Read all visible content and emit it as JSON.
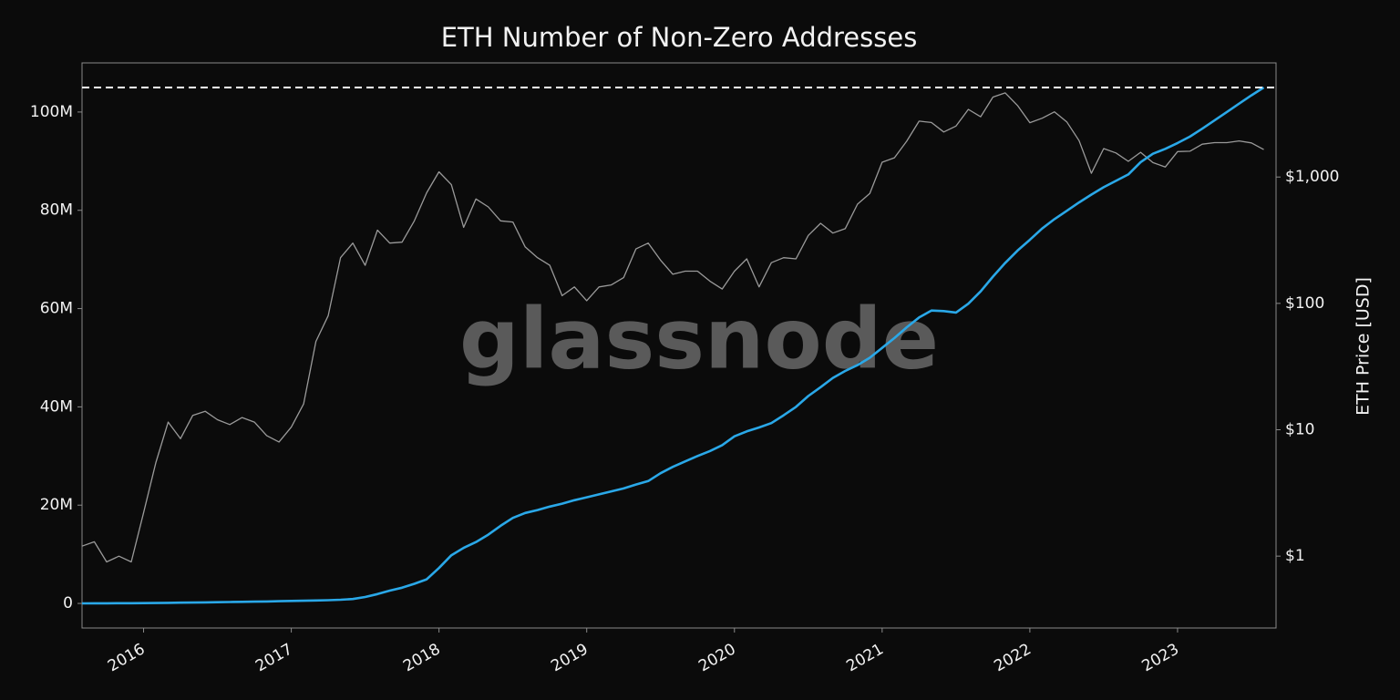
{
  "chart_data": {
    "type": "line",
    "title": "ETH Number of Non-Zero Addresses",
    "watermark": "glassnode",
    "y2label": "ETH Price [USD]",
    "x": [
      "2015-08",
      "2015-09",
      "2015-10",
      "2015-11",
      "2015-12",
      "2016-01",
      "2016-02",
      "2016-03",
      "2016-04",
      "2016-05",
      "2016-06",
      "2016-07",
      "2016-08",
      "2016-09",
      "2016-10",
      "2016-11",
      "2016-12",
      "2017-01",
      "2017-02",
      "2017-03",
      "2017-04",
      "2017-05",
      "2017-06",
      "2017-07",
      "2017-08",
      "2017-09",
      "2017-10",
      "2017-11",
      "2017-12",
      "2018-01",
      "2018-02",
      "2018-03",
      "2018-04",
      "2018-05",
      "2018-06",
      "2018-07",
      "2018-08",
      "2018-09",
      "2018-10",
      "2018-11",
      "2018-12",
      "2019-01",
      "2019-02",
      "2019-03",
      "2019-04",
      "2019-05",
      "2019-06",
      "2019-07",
      "2019-08",
      "2019-09",
      "2019-10",
      "2019-11",
      "2019-12",
      "2020-01",
      "2020-02",
      "2020-03",
      "2020-04",
      "2020-05",
      "2020-06",
      "2020-07",
      "2020-08",
      "2020-09",
      "2020-10",
      "2020-11",
      "2020-12",
      "2021-01",
      "2021-02",
      "2021-03",
      "2021-04",
      "2021-05",
      "2021-06",
      "2021-07",
      "2021-08",
      "2021-09",
      "2021-10",
      "2021-11",
      "2021-12",
      "2022-01",
      "2022-02",
      "2022-03",
      "2022-04",
      "2022-05",
      "2022-06",
      "2022-07",
      "2022-08",
      "2022-09",
      "2022-10",
      "2022-11",
      "2022-12",
      "2023-01",
      "2023-02",
      "2023-03",
      "2023-04",
      "2023-05",
      "2023-06",
      "2023-07",
      "2023-08"
    ],
    "series": [
      {
        "color": "#2aa8e8",
        "values": [
          10000.0,
          20000.0,
          30000.0,
          40000.0,
          50000.0,
          70000.0,
          90000.0,
          120000.0,
          150000.0,
          180000.0,
          210000.0,
          240000.0,
          280000.0,
          320000.0,
          360000.0,
          400000.0,
          450000.0,
          500000.0,
          550000.0,
          600000.0,
          650000.0,
          750000.0,
          900000.0,
          1300000.0,
          1900000.0,
          2600000.0,
          3200000.0,
          4000000.0,
          4900000.0,
          7200000.0,
          9800000.0,
          11300000.0,
          12500000.0,
          14000000.0,
          15800000.0,
          17400000.0,
          18400000.0,
          19000000.0,
          19700000.0,
          20300000.0,
          21000000.0,
          21600000.0,
          22200000.0,
          22800000.0,
          23400000.0,
          24200000.0,
          24900000.0,
          26500000.0,
          27800000.0,
          28900000.0,
          30000000.0,
          31000000.0,
          32200000.0,
          34000000.0,
          35000000.0,
          35800000.0,
          36700000.0,
          38300000.0,
          40000000.0,
          42200000.0,
          44000000.0,
          45900000.0,
          47300000.0,
          48500000.0,
          50000000.0,
          52000000.0,
          54000000.0,
          56200000.0,
          58200000.0,
          59600000.0,
          59500000.0,
          59200000.0,
          61000000.0,
          63500000.0,
          66500000.0,
          69300000.0,
          71800000.0,
          74000000.0,
          76300000.0,
          78200000.0,
          79900000.0,
          81600000.0,
          83200000.0,
          84700000.0,
          86000000.0,
          87300000.0,
          89800000.0,
          91500000.0,
          92500000.0,
          93700000.0,
          95000000.0,
          96600000.0,
          98300000.0,
          100000000.0,
          101700000.0,
          103400000.0,
          105000000.0
        ]
      },
      {
        "color": "#9a9a9a",
        "axis": "y2",
        "values": [
          1.2,
          1.3,
          0.9,
          1.0,
          0.9,
          2.2,
          5.5,
          11.5,
          8.5,
          13,
          14,
          12,
          11,
          12.5,
          11.5,
          9,
          8,
          10.5,
          16,
          50,
          80,
          230,
          300,
          200,
          380,
          300,
          305,
          450,
          750,
          1100,
          870,
          400,
          670,
          580,
          450,
          440,
          280,
          230,
          200,
          115,
          135,
          105,
          135,
          140,
          160,
          270,
          300,
          220,
          170,
          180,
          180,
          150,
          130,
          180,
          225,
          135,
          210,
          230,
          225,
          345,
          430,
          360,
          390,
          610,
          740,
          1310,
          1420,
          1920,
          2770,
          2700,
          2270,
          2530,
          3430,
          3000,
          4290,
          4630,
          3680,
          2690,
          2920,
          3280,
          2730,
          1940,
          1070,
          1680,
          1550,
          1330,
          1570,
          1300,
          1200,
          1590,
          1600,
          1820,
          1870,
          1870,
          1930,
          1860,
          1650
        ]
      }
    ],
    "hline": 105000000.0,
    "xlim": [
      "2015-08",
      "2023-09"
    ],
    "xticks": [
      2016,
      2017,
      2018,
      2019,
      2020,
      2021,
      2022,
      2023
    ],
    "ylim": [
      -5000000.0,
      110000000.0
    ],
    "yticks": [
      0,
      {
        "value": 20000000.0,
        "label": "20M"
      },
      {
        "value": 40000000.0,
        "label": "40M"
      },
      {
        "value": 60000000.0,
        "label": "60M"
      },
      {
        "value": 80000000.0,
        "label": "80M"
      },
      {
        "value": 100000000.0,
        "label": "100M"
      }
    ],
    "y2lim": [
      0.27,
      8000
    ],
    "y2log": true,
    "y2ticks": [
      {
        "value": 1,
        "label": "$1"
      },
      {
        "value": 10,
        "label": "$10"
      },
      {
        "value": 100,
        "label": "$100"
      },
      {
        "value": 1000,
        "label": "$1,000"
      }
    ]
  }
}
